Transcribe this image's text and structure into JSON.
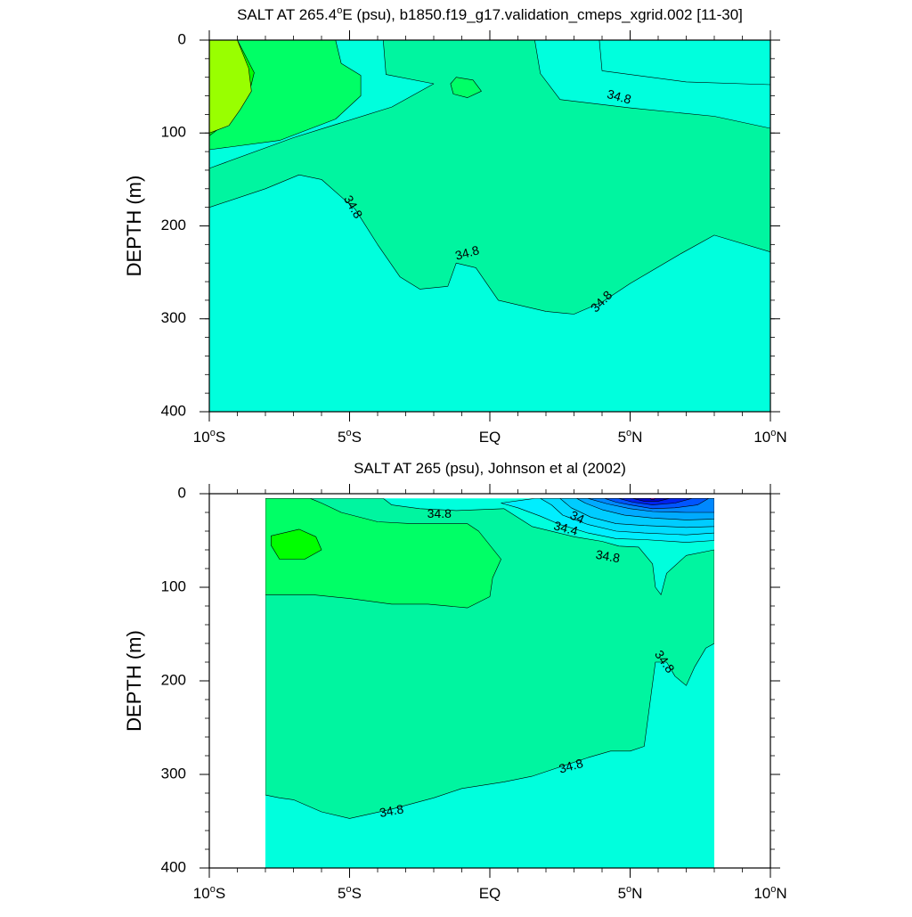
{
  "chart_data": [
    {
      "type": "contour",
      "title": "SALT AT 265.4°E (psu), b1850.f19_g17.validation_cmeps_xgrid.002 [11-30]",
      "title_parts": {
        "pre": "SALT AT 265.4",
        "deg": "o",
        "post": "E (psu), b1850.f19_g17.validation_cmeps_xgrid.002 [11-30]"
      },
      "ylabel": "DEPTH (m)",
      "xlabel": "",
      "xlim": [
        -10,
        10
      ],
      "ylim": [
        0,
        400
      ],
      "y_inverted": true,
      "x_ticks": [
        {
          "value": -10,
          "label": "10°S",
          "num": "10",
          "deg": "o",
          "hemi": "S"
        },
        {
          "value": -5,
          "label": "5°S",
          "num": "5",
          "deg": "o",
          "hemi": "S"
        },
        {
          "value": 0,
          "label": "EQ",
          "num": "EQ",
          "deg": "",
          "hemi": ""
        },
        {
          "value": 5,
          "label": "5°N",
          "num": "5",
          "deg": "o",
          "hemi": "N"
        },
        {
          "value": 10,
          "label": "10°N",
          "num": "10",
          "deg": "o",
          "hemi": "N"
        }
      ],
      "y_ticks": [
        0,
        100,
        200,
        300,
        400
      ],
      "data_extent": {
        "x": [
          -10,
          10
        ],
        "y": [
          0,
          400
        ]
      },
      "background_color": "#00ffdd",
      "regions": [
        {
          "level": 34.9,
          "color": "#00f5a0",
          "points": [
            [
              -10,
              0
            ],
            [
              -3.8,
              0
            ],
            [
              -3.7,
              37
            ],
            [
              -2,
              47
            ],
            [
              -3.5,
              72
            ],
            [
              -7,
              105
            ],
            [
              -10,
              138
            ],
            [
              -10,
              180
            ],
            [
              -8,
              160
            ],
            [
              -6.8,
              145
            ],
            [
              -6,
              150
            ],
            [
              -4.8,
              182
            ],
            [
              -4,
              220
            ],
            [
              -3.2,
              255
            ],
            [
              -2.5,
              268
            ],
            [
              -1.5,
              265
            ],
            [
              -1.2,
              240
            ],
            [
              -0.5,
              245
            ],
            [
              0.3,
              280
            ],
            [
              2,
              292
            ],
            [
              3,
              295
            ],
            [
              4,
              282
            ],
            [
              5,
              262
            ],
            [
              6.8,
              230
            ],
            [
              8,
              210
            ],
            [
              10,
              228
            ],
            [
              10,
              95
            ],
            [
              8,
              82
            ],
            [
              5,
              73
            ],
            [
              2.5,
              64
            ],
            [
              1.8,
              36
            ],
            [
              1.6,
              0
            ]
          ]
        },
        {
          "level": 34.8,
          "color": "#00ffdd",
          "points": [
            [
              1.6,
              0
            ],
            [
              10,
              0
            ],
            [
              10,
              48
            ],
            [
              7,
              45
            ],
            [
              4,
              33
            ],
            [
              3.9,
              0
            ]
          ]
        },
        {
          "level": 35.0,
          "color": "#00ff66",
          "points": [
            [
              -10,
              0
            ],
            [
              -5.5,
              0
            ],
            [
              -5.3,
              25
            ],
            [
              -4.6,
              38
            ],
            [
              -4.6,
              60
            ],
            [
              -5.5,
              85
            ],
            [
              -7.5,
              108
            ],
            [
              -10,
              118
            ]
          ]
        },
        {
          "level": 35.0,
          "color": "#00ff66",
          "points": [
            [
              -1.4,
              47
            ],
            [
              -1.2,
              40
            ],
            [
              -0.6,
              43
            ],
            [
              -0.3,
              55
            ],
            [
              -0.8,
              62
            ],
            [
              -1.3,
              58
            ]
          ]
        },
        {
          "level": 35.1,
          "color": "#00ff00",
          "points": [
            [
              -10,
              0
            ],
            [
              -9,
              0
            ],
            [
              -8.4,
              35
            ],
            [
              -8.6,
              60
            ],
            [
              -9.2,
              85
            ],
            [
              -10,
              103
            ]
          ]
        },
        {
          "level": 35.2,
          "color": "#99ff00",
          "points": [
            [
              -10,
              0
            ],
            [
              -9,
              0
            ],
            [
              -8.6,
              30
            ],
            [
              -8.5,
              55
            ],
            [
              -8.9,
              75
            ],
            [
              -9.3,
              92
            ],
            [
              -10,
              100
            ]
          ]
        }
      ],
      "contour_labels": [
        {
          "text": "34.8",
          "x": 4.6,
          "y": 62,
          "angle": 15
        },
        {
          "text": "34.8",
          "x": -4.9,
          "y": 180,
          "angle": 60
        },
        {
          "text": "34.8",
          "x": -0.8,
          "y": 230,
          "angle": -15
        },
        {
          "text": "34.8",
          "x": 4.0,
          "y": 282,
          "angle": -45
        }
      ]
    },
    {
      "type": "contour",
      "title": "SALT AT 265 (psu), Johnson et al (2002)",
      "title_parts": {
        "pre": "SALT AT 265 (psu), Johnson et al (2002)",
        "deg": "",
        "post": ""
      },
      "ylabel": "DEPTH (m)",
      "xlabel": "",
      "xlim": [
        -10,
        10
      ],
      "ylim": [
        0,
        400
      ],
      "y_inverted": true,
      "x_ticks": [
        {
          "value": -10,
          "label": "10°S",
          "num": "10",
          "deg": "o",
          "hemi": "S"
        },
        {
          "value": -5,
          "label": "5°S",
          "num": "5",
          "deg": "o",
          "hemi": "S"
        },
        {
          "value": 0,
          "label": "EQ",
          "num": "EQ",
          "deg": "",
          "hemi": ""
        },
        {
          "value": 5,
          "label": "5°N",
          "num": "5",
          "deg": "o",
          "hemi": "N"
        },
        {
          "value": 10,
          "label": "10°N",
          "num": "10",
          "deg": "o",
          "hemi": "N"
        }
      ],
      "y_ticks": [
        0,
        100,
        200,
        300,
        400
      ],
      "data_extent": {
        "x": [
          -8,
          8
        ],
        "y": [
          5,
          400
        ]
      },
      "background_color": "#00ffdd",
      "regions": [
        {
          "level": 34.9,
          "color": "#00f5a0",
          "points": [
            [
              -8,
              5
            ],
            [
              -3.8,
              5
            ],
            [
              -3.5,
              12
            ],
            [
              -2.5,
              16
            ],
            [
              -1.2,
              18
            ],
            [
              0.5,
              16
            ],
            [
              1.5,
              35
            ],
            [
              3,
              46
            ],
            [
              4,
              51
            ],
            [
              4.6,
              56
            ],
            [
              5.3,
              57
            ],
            [
              5.8,
              75
            ],
            [
              5.9,
              100
            ],
            [
              6.1,
              108
            ],
            [
              6.3,
              85
            ],
            [
              7,
              66
            ],
            [
              8,
              60
            ],
            [
              8,
              160
            ],
            [
              7.7,
              165
            ],
            [
              7.3,
              185
            ],
            [
              7,
              205
            ],
            [
              6.6,
              195
            ],
            [
              6.3,
              180
            ],
            [
              5.9,
              180
            ],
            [
              5.5,
              270
            ],
            [
              5,
              275
            ],
            [
              4.3,
              275
            ],
            [
              3.5,
              282
            ],
            [
              2.5,
              292
            ],
            [
              1.5,
              302
            ],
            [
              0.5,
              308
            ],
            [
              -1,
              315
            ],
            [
              -2,
              325
            ],
            [
              -3.5,
              337
            ],
            [
              -5,
              347
            ],
            [
              -6,
              340
            ],
            [
              -7,
              327
            ],
            [
              -7.5,
              325
            ],
            [
              -8,
              322
            ]
          ]
        },
        {
          "level": 35.0,
          "color": "#00ff66",
          "points": [
            [
              -8,
              5
            ],
            [
              -6.4,
              5
            ],
            [
              -6,
              10
            ],
            [
              -5.3,
              20
            ],
            [
              -4,
              30
            ],
            [
              -2.8,
              32
            ],
            [
              -0.8,
              32
            ],
            [
              -0.4,
              40
            ],
            [
              0.4,
              70
            ],
            [
              0.1,
              90
            ],
            [
              0,
              110
            ],
            [
              -0.8,
              122
            ],
            [
              -2.2,
              118
            ],
            [
              -3.5,
              118
            ],
            [
              -5,
              112
            ],
            [
              -6.3,
              108
            ],
            [
              -8,
              108
            ]
          ]
        },
        {
          "level": 35.1,
          "color": "#00ff00",
          "points": [
            [
              -7.8,
              45
            ],
            [
              -6.8,
              38
            ],
            [
              -6.2,
              46
            ],
            [
              -6,
              60
            ],
            [
              -6.6,
              70
            ],
            [
              -7.5,
              70
            ],
            [
              -7.8,
              55
            ]
          ]
        },
        {
          "level": 34.7,
          "color": "#00eeff",
          "points": [
            [
              0.4,
              10
            ],
            [
              1.6,
              5
            ],
            [
              8,
              5
            ],
            [
              8,
              50
            ],
            [
              7,
              52
            ],
            [
              5.5,
              49
            ],
            [
              4.5,
              48
            ],
            [
              3.5,
              42
            ],
            [
              2.5,
              33
            ],
            [
              1.8,
              24
            ],
            [
              1,
              15
            ]
          ]
        },
        {
          "level": 34.6,
          "color": "#00ddff",
          "points": [
            [
              1.8,
              5
            ],
            [
              8,
              5
            ],
            [
              8,
              42
            ],
            [
              7,
              44
            ],
            [
              5.5,
              42
            ],
            [
              4.5,
              40
            ],
            [
              3.5,
              33
            ],
            [
              2.6,
              23
            ],
            [
              2.2,
              12
            ]
          ]
        },
        {
          "level": 34.5,
          "color": "#00ccff",
          "points": [
            [
              2.5,
              5
            ],
            [
              8,
              5
            ],
            [
              8,
              35
            ],
            [
              7,
              36
            ],
            [
              5.5,
              34
            ],
            [
              4.5,
              32
            ],
            [
              3.6,
              25
            ],
            [
              2.9,
              15
            ]
          ]
        },
        {
          "level": 34.4,
          "color": "#00aaff",
          "points": [
            [
              3.1,
              5
            ],
            [
              8,
              5
            ],
            [
              8,
              27
            ],
            [
              7,
              28
            ],
            [
              5.8,
              26
            ],
            [
              4.8,
              23
            ],
            [
              4,
              17
            ],
            [
              3.4,
              10
            ]
          ]
        },
        {
          "level": 34.2,
          "color": "#0088ff",
          "points": [
            [
              3.5,
              5
            ],
            [
              8,
              5
            ],
            [
              8,
              20
            ],
            [
              7,
              20
            ],
            [
              5.8,
              19
            ],
            [
              5,
              16
            ],
            [
              4.2,
              11
            ]
          ]
        },
        {
          "level": 34.0,
          "color": "#0055ff",
          "points": [
            [
              4.1,
              5
            ],
            [
              7.8,
              5
            ],
            [
              7.4,
              12
            ],
            [
              6.6,
              15
            ],
            [
              5.8,
              16
            ],
            [
              5,
              12
            ],
            [
              4.5,
              9
            ]
          ]
        },
        {
          "level": 33.8,
          "color": "#0022ee",
          "points": [
            [
              4.6,
              5
            ],
            [
              7.2,
              5
            ],
            [
              6.6,
              10
            ],
            [
              5.8,
              12
            ],
            [
              5.1,
              9
            ]
          ]
        },
        {
          "level": 33.6,
          "color": "#0000cc",
          "points": [
            [
              5.1,
              5
            ],
            [
              6.4,
              5
            ],
            [
              6,
              8
            ],
            [
              5.5,
              8
            ]
          ]
        },
        {
          "level": 33.4,
          "color": "#ee00ee",
          "points": [
            [
              5.7,
              5
            ],
            [
              5.9,
              5
            ],
            [
              5.85,
              6
            ],
            [
              5.75,
              6
            ]
          ]
        }
      ],
      "contour_labels": [
        {
          "text": "34.8",
          "x": -3.5,
          "y": 340,
          "angle": -10
        },
        {
          "text": "34.8",
          "x": 2.9,
          "y": 292,
          "angle": -15
        },
        {
          "text": "34.8",
          "x": 6.2,
          "y": 180,
          "angle": 55
        },
        {
          "text": "34.8",
          "x": -1.8,
          "y": 22,
          "angle": 0
        },
        {
          "text": "34.8",
          "x": 4.2,
          "y": 68,
          "angle": 10
        },
        {
          "text": "34.4",
          "x": 2.7,
          "y": 38,
          "angle": 15
        },
        {
          "text": "34",
          "x": 3.1,
          "y": 26,
          "angle": 25
        }
      ]
    }
  ]
}
